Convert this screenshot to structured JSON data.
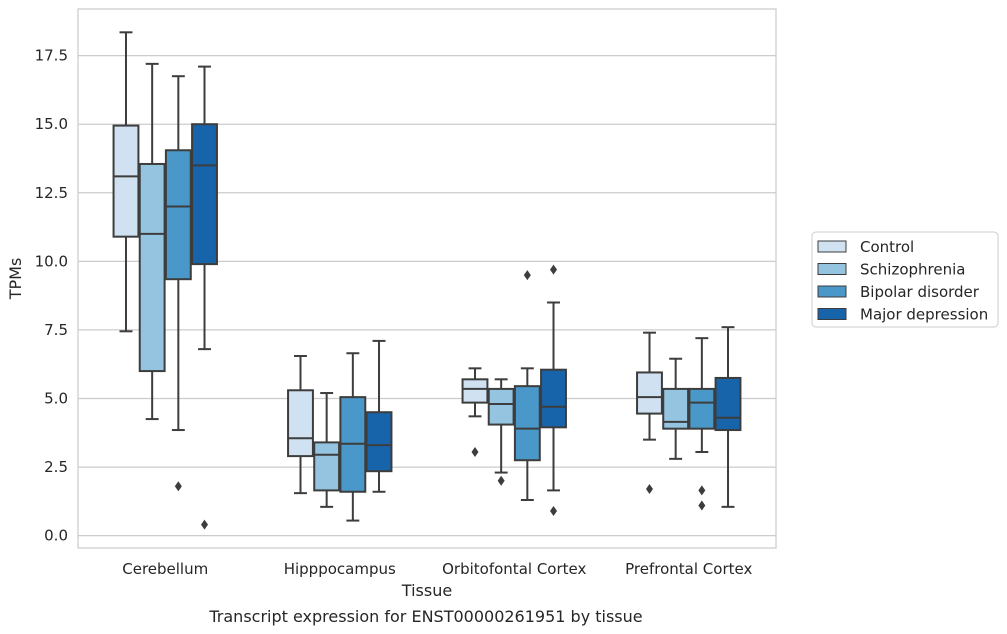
{
  "chart_data": {
    "type": "box",
    "xlabel": "Tissue",
    "ylabel": "TPMs",
    "caption": "Transcript expression for ENST00000261951 by tissue",
    "ylim": [
      -0.45,
      19.2
    ],
    "yticks": [
      0.0,
      2.5,
      5.0,
      7.5,
      10.0,
      12.5,
      15.0,
      17.5
    ],
    "ytick_labels": [
      "0.0",
      "2.5",
      "5.0",
      "7.5",
      "10.0",
      "12.5",
      "15.0",
      "17.5"
    ],
    "grid": "horizontal",
    "legend_position": "right",
    "categories": [
      "Cerebellum",
      "Hipppocampus",
      "Orbitofontal Cortex",
      "Prefrontal Cortex"
    ],
    "series": [
      {
        "name": "Control",
        "color": "#d0e1f2",
        "boxes": [
          {
            "whislo": 7.45,
            "q1": 10.9,
            "med": 13.1,
            "q3": 14.95,
            "whishi": 18.35,
            "fliers": []
          },
          {
            "whislo": 1.55,
            "q1": 2.9,
            "med": 3.55,
            "q3": 5.3,
            "whishi": 6.55,
            "fliers": []
          },
          {
            "whislo": 4.35,
            "q1": 4.85,
            "med": 5.35,
            "q3": 5.7,
            "whishi": 6.1,
            "fliers": [
              3.05
            ]
          },
          {
            "whislo": 3.5,
            "q1": 4.45,
            "med": 5.05,
            "q3": 5.95,
            "whishi": 7.4,
            "fliers": [
              1.7
            ]
          }
        ]
      },
      {
        "name": "Schizophrenia",
        "color": "#94c4df",
        "boxes": [
          {
            "whislo": 4.25,
            "q1": 6.0,
            "med": 11.0,
            "q3": 13.55,
            "whishi": 17.2,
            "fliers": []
          },
          {
            "whislo": 1.05,
            "q1": 1.65,
            "med": 2.95,
            "q3": 3.4,
            "whishi": 5.2,
            "fliers": []
          },
          {
            "whislo": 2.3,
            "q1": 4.05,
            "med": 4.8,
            "q3": 5.35,
            "whishi": 5.7,
            "fliers": [
              2.0
            ]
          },
          {
            "whislo": 2.8,
            "q1": 3.9,
            "med": 4.15,
            "q3": 5.35,
            "whishi": 6.45,
            "fliers": []
          }
        ]
      },
      {
        "name": "Bipolar disorder",
        "color": "#4a98c9",
        "boxes": [
          {
            "whislo": 3.85,
            "q1": 9.35,
            "med": 12.0,
            "q3": 14.05,
            "whishi": 16.75,
            "fliers": [
              1.8
            ]
          },
          {
            "whislo": 0.55,
            "q1": 1.6,
            "med": 3.35,
            "q3": 5.05,
            "whishi": 6.65,
            "fliers": []
          },
          {
            "whislo": 1.3,
            "q1": 2.75,
            "med": 3.9,
            "q3": 5.45,
            "whishi": 6.1,
            "fliers": [
              9.5
            ]
          },
          {
            "whislo": 3.05,
            "q1": 3.9,
            "med": 4.85,
            "q3": 5.35,
            "whishi": 7.2,
            "fliers": [
              1.65,
              1.1
            ]
          }
        ]
      },
      {
        "name": "Major depression",
        "color": "#1764ab",
        "boxes": [
          {
            "whislo": 6.8,
            "q1": 9.9,
            "med": 13.5,
            "q3": 15.0,
            "whishi": 17.1,
            "fliers": [
              0.4
            ]
          },
          {
            "whislo": 1.6,
            "q1": 2.35,
            "med": 3.3,
            "q3": 4.5,
            "whishi": 7.1,
            "fliers": []
          },
          {
            "whislo": 1.65,
            "q1": 3.95,
            "med": 4.7,
            "q3": 6.05,
            "whishi": 8.5,
            "fliers": [
              9.7,
              0.9
            ]
          },
          {
            "whislo": 1.05,
            "q1": 3.85,
            "med": 4.3,
            "q3": 5.75,
            "whishi": 7.6,
            "fliers": []
          }
        ]
      }
    ]
  }
}
